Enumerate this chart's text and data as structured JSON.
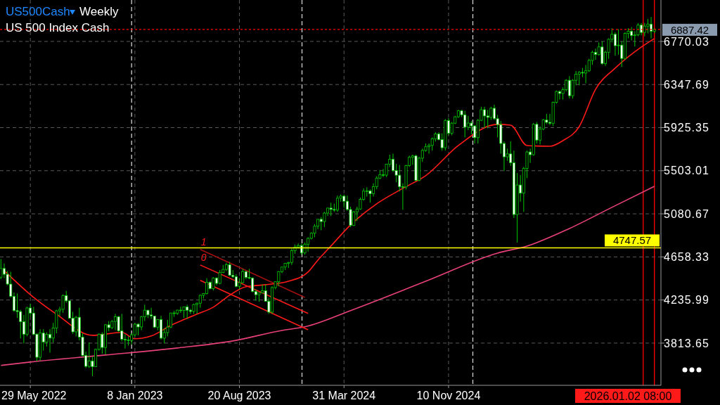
{
  "chart_data": {
    "type": "candlestick",
    "title": "US500Cash",
    "subtitle": "Weekly",
    "color": "#00c800",
    "annotations": [
      "US 500 Index Cash",
      "2026.01.02 08:00",
      "1",
      "0"
    ],
    "xlim": [
      "2022-03-25",
      "2026-02-08"
    ],
    "ylim": [
      3400,
      7176
    ],
    "xticks": [
      {
        "value": "2022-05-29",
        "label": "29 May 2022"
      },
      {
        "value": "2023-01-08",
        "label": "8 Jan 2023"
      },
      {
        "value": "2023-08-20",
        "label": "20 Aug 2023"
      },
      {
        "value": "2024-03-31",
        "label": "31 Mar 2024"
      },
      {
        "value": "2024-11-10",
        "label": "10 Nov 2024"
      }
    ],
    "yticks": [
      3813.65,
      4235.99,
      4658.33,
      5080.67,
      5503.01,
      5925.35,
      6347.69,
      6770.03
    ],
    "grid": true,
    "ref_lines": [
      {
        "axis": "y",
        "value": 4747.57,
        "label": "4747.57",
        "color": "#ffff00",
        "line_style": "solid"
      },
      {
        "axis": "y",
        "value": 6887.42,
        "label": "6887.42",
        "color": "#ff0000",
        "line_style": "dotted"
      },
      {
        "axis": "x",
        "value": "2023-01-01",
        "color": "#d0d0d0",
        "line_style": "dashed"
      },
      {
        "axis": "x",
        "value": "2024-01-01",
        "color": "#d0d0d0",
        "line_style": "dashed"
      },
      {
        "axis": "x",
        "value": "2025-01-01",
        "color": "#d0d0d0",
        "line_style": "dashed"
      },
      {
        "axis": "x",
        "value": "2026-01-01",
        "color": "#ff0000",
        "line_style": "solid"
      },
      {
        "axis": "x",
        "value": "2026-01-25",
        "color": "#ff0000",
        "line_style": "solid"
      }
    ],
    "x": [
      "2022-03-27",
      "2022-04-03",
      "2022-04-10",
      "2022-04-17",
      "2022-04-24",
      "2022-05-01",
      "2022-05-08",
      "2022-05-15",
      "2022-05-22",
      "2022-05-29",
      "2022-06-05",
      "2022-06-12",
      "2022-06-19",
      "2022-06-26",
      "2022-07-03",
      "2022-07-10",
      "2022-07-17",
      "2022-07-24",
      "2022-07-31",
      "2022-08-07",
      "2022-08-14",
      "2022-08-21",
      "2022-08-28",
      "2022-09-04",
      "2022-09-11",
      "2022-09-18",
      "2022-09-25",
      "2022-10-02",
      "2022-10-09",
      "2022-10-16",
      "2022-10-23",
      "2022-10-30",
      "2022-11-06",
      "2022-11-13",
      "2022-11-20",
      "2022-11-27",
      "2022-12-04",
      "2022-12-11",
      "2022-12-18",
      "2022-12-25",
      "2023-01-01",
      "2023-01-08",
      "2023-01-15",
      "2023-01-22",
      "2023-01-29",
      "2023-02-05",
      "2023-02-12",
      "2023-02-19",
      "2023-02-26",
      "2023-03-05",
      "2023-03-12",
      "2023-03-19",
      "2023-03-26",
      "2023-04-02",
      "2023-04-09",
      "2023-04-16",
      "2023-04-23",
      "2023-04-30",
      "2023-05-07",
      "2023-05-14",
      "2023-05-21",
      "2023-05-28",
      "2023-06-04",
      "2023-06-11",
      "2023-06-18",
      "2023-06-25",
      "2023-07-02",
      "2023-07-09",
      "2023-07-16",
      "2023-07-23",
      "2023-07-30",
      "2023-08-06",
      "2023-08-13",
      "2023-08-20",
      "2023-08-27",
      "2023-09-03",
      "2023-09-10",
      "2023-09-17",
      "2023-09-24",
      "2023-10-01",
      "2023-10-08",
      "2023-10-15",
      "2023-10-22",
      "2023-10-29",
      "2023-11-05",
      "2023-11-12",
      "2023-11-19",
      "2023-11-26",
      "2023-12-03",
      "2023-12-10",
      "2023-12-17",
      "2023-12-24",
      "2023-12-31",
      "2024-01-07",
      "2024-01-14",
      "2024-01-21",
      "2024-01-28",
      "2024-02-04",
      "2024-02-11",
      "2024-02-18",
      "2024-02-25",
      "2024-03-03",
      "2024-03-10",
      "2024-03-17",
      "2024-03-24",
      "2024-03-31",
      "2024-04-07",
      "2024-04-14",
      "2024-04-21",
      "2024-04-28",
      "2024-05-05",
      "2024-05-12",
      "2024-05-19",
      "2024-05-26",
      "2024-06-02",
      "2024-06-09",
      "2024-06-16",
      "2024-06-23",
      "2024-06-30",
      "2024-07-07",
      "2024-07-14",
      "2024-07-21",
      "2024-07-28",
      "2024-08-04",
      "2024-08-11",
      "2024-08-18",
      "2024-08-25",
      "2024-09-01",
      "2024-09-08",
      "2024-09-15",
      "2024-09-22",
      "2024-09-29",
      "2024-10-06",
      "2024-10-13",
      "2024-10-20",
      "2024-10-27",
      "2024-11-03",
      "2024-11-10",
      "2024-11-17",
      "2024-11-24",
      "2024-12-01",
      "2024-12-08",
      "2024-12-15",
      "2024-12-22",
      "2024-12-29",
      "2025-01-05",
      "2025-01-12",
      "2025-01-19",
      "2025-01-26",
      "2025-02-02",
      "2025-02-09",
      "2025-02-16",
      "2025-02-23",
      "2025-03-02",
      "2025-03-09",
      "2025-03-16",
      "2025-03-23",
      "2025-03-30",
      "2025-04-06",
      "2025-04-13",
      "2025-04-20",
      "2025-04-27",
      "2025-05-04",
      "2025-05-11",
      "2025-05-18",
      "2025-05-25",
      "2025-06-01",
      "2025-06-08",
      "2025-06-15",
      "2025-06-22",
      "2025-06-29",
      "2025-07-06",
      "2025-07-13",
      "2025-07-20",
      "2025-07-27",
      "2025-08-03",
      "2025-08-10",
      "2025-08-17",
      "2025-08-24",
      "2025-08-31",
      "2025-09-07",
      "2025-09-14",
      "2025-09-21",
      "2025-09-28",
      "2025-10-05",
      "2025-10-12",
      "2025-10-19",
      "2025-10-26",
      "2025-11-02",
      "2025-11-09",
      "2025-11-16",
      "2025-11-23",
      "2025-11-30",
      "2025-12-07",
      "2025-12-14",
      "2025-12-21",
      "2025-12-28",
      "2026-01-04",
      "2026-01-11",
      "2026-01-18",
      "2026-01-25"
    ],
    "ohlc": [
      [
        4460,
        4637,
        4440,
        4545
      ],
      [
        4545,
        4593,
        4450,
        4488
      ],
      [
        4488,
        4520,
        4380,
        4392
      ],
      [
        4392,
        4512,
        4260,
        4272
      ],
      [
        4272,
        4310,
        4120,
        4132
      ],
      [
        4132,
        4300,
        4060,
        4123
      ],
      [
        4123,
        4140,
        3860,
        4023
      ],
      [
        4023,
        4090,
        3810,
        3901
      ],
      [
        3901,
        4170,
        3880,
        4158
      ],
      [
        4158,
        4200,
        4075,
        4108
      ],
      [
        4108,
        4170,
        3890,
        3901
      ],
      [
        3901,
        3910,
        3636,
        3675
      ],
      [
        3675,
        3950,
        3640,
        3912
      ],
      [
        3912,
        3950,
        3740,
        3825
      ],
      [
        3825,
        3920,
        3780,
        3899
      ],
      [
        3899,
        3950,
        3720,
        3863
      ],
      [
        3863,
        4012,
        3820,
        3962
      ],
      [
        3962,
        4140,
        3910,
        4130
      ],
      [
        4130,
        4170,
        4080,
        4145
      ],
      [
        4145,
        4290,
        4110,
        4280
      ],
      [
        4280,
        4325,
        4210,
        4228
      ],
      [
        4228,
        4230,
        4050,
        4058
      ],
      [
        4058,
        4120,
        3905,
        3924
      ],
      [
        3924,
        4080,
        3880,
        4067
      ],
      [
        4067,
        4160,
        3840,
        3873
      ],
      [
        3873,
        3910,
        3680,
        3693
      ],
      [
        3693,
        3730,
        3570,
        3586
      ],
      [
        3586,
        3820,
        3570,
        3639
      ],
      [
        3639,
        3680,
        3490,
        3583
      ],
      [
        3583,
        3760,
        3580,
        3752
      ],
      [
        3752,
        3910,
        3740,
        3901
      ],
      [
        3901,
        3920,
        3710,
        3771
      ],
      [
        3771,
        4000,
        3700,
        3993
      ],
      [
        3993,
        4030,
        3930,
        3965
      ],
      [
        3965,
        4040,
        3950,
        4026
      ],
      [
        4026,
        4100,
        3940,
        4072
      ],
      [
        4072,
        4080,
        3920,
        3934
      ],
      [
        3934,
        4100,
        3830,
        3852
      ],
      [
        3852,
        3900,
        3760,
        3845
      ],
      [
        3845,
        3880,
        3790,
        3840
      ],
      [
        3840,
        3910,
        3800,
        3895
      ],
      [
        3895,
        4010,
        3880,
        3999
      ],
      [
        3999,
        4010,
        3890,
        3972
      ],
      [
        3972,
        4080,
        3940,
        4071
      ],
      [
        4071,
        4190,
        4030,
        4136
      ],
      [
        4136,
        4140,
        4060,
        4090
      ],
      [
        4090,
        4160,
        4050,
        4079
      ],
      [
        4079,
        4080,
        3960,
        3970
      ],
      [
        3970,
        4050,
        3940,
        4045
      ],
      [
        4045,
        4080,
        3850,
        3862
      ],
      [
        3862,
        3960,
        3810,
        3917
      ],
      [
        3917,
        4040,
        3880,
        3971
      ],
      [
        3971,
        4110,
        3960,
        4109
      ],
      [
        4109,
        4130,
        4070,
        4105
      ],
      [
        4105,
        4140,
        4090,
        4137
      ],
      [
        4137,
        4170,
        4110,
        4133
      ],
      [
        4133,
        4170,
        4060,
        4169
      ],
      [
        4169,
        4190,
        4050,
        4136
      ],
      [
        4136,
        4150,
        4100,
        4124
      ],
      [
        4124,
        4200,
        4100,
        4192
      ],
      [
        4192,
        4210,
        4100,
        4205
      ],
      [
        4205,
        4290,
        4160,
        4282
      ],
      [
        4282,
        4300,
        4250,
        4299
      ],
      [
        4299,
        4450,
        4290,
        4410
      ],
      [
        4410,
        4420,
        4340,
        4348
      ],
      [
        4348,
        4460,
        4330,
        4450
      ],
      [
        4450,
        4460,
        4380,
        4399
      ],
      [
        4399,
        4530,
        4390,
        4505
      ],
      [
        4505,
        4580,
        4500,
        4536
      ],
      [
        4536,
        4600,
        4520,
        4582
      ],
      [
        4582,
        4610,
        4470,
        4478
      ],
      [
        4478,
        4530,
        4450,
        4464
      ],
      [
        4464,
        4490,
        4360,
        4370
      ],
      [
        4370,
        4450,
        4340,
        4406
      ],
      [
        4406,
        4540,
        4400,
        4515
      ],
      [
        4515,
        4520,
        4440,
        4457
      ],
      [
        4457,
        4540,
        4440,
        4450
      ],
      [
        4450,
        4460,
        4310,
        4320
      ],
      [
        4320,
        4340,
        4230,
        4288
      ],
      [
        4288,
        4310,
        4220,
        4308
      ],
      [
        4308,
        4390,
        4300,
        4327
      ],
      [
        4327,
        4390,
        4220,
        4224
      ],
      [
        4224,
        4260,
        4100,
        4117
      ],
      [
        4117,
        4370,
        4100,
        4358
      ],
      [
        4358,
        4420,
        4340,
        4415
      ],
      [
        4415,
        4520,
        4370,
        4514
      ],
      [
        4514,
        4560,
        4500,
        4559
      ],
      [
        4559,
        4600,
        4530,
        4595
      ],
      [
        4595,
        4610,
        4550,
        4604
      ],
      [
        4604,
        4740,
        4580,
        4719
      ],
      [
        4719,
        4780,
        4690,
        4754
      ],
      [
        4754,
        4790,
        4740,
        4770
      ],
      [
        4770,
        4790,
        4680,
        4697
      ],
      [
        4697,
        4800,
        4680,
        4783
      ],
      [
        4783,
        4850,
        4710,
        4840
      ],
      [
        4840,
        4900,
        4830,
        4891
      ],
      [
        4891,
        4980,
        4850,
        4959
      ],
      [
        4959,
        5030,
        4930,
        5027
      ],
      [
        5027,
        5050,
        4920,
        5005
      ],
      [
        5005,
        5100,
        4950,
        5088
      ],
      [
        5088,
        5140,
        5060,
        5137
      ],
      [
        5137,
        5190,
        5060,
        5124
      ],
      [
        5124,
        5180,
        5100,
        5117
      ],
      [
        5117,
        5260,
        5100,
        5234
      ],
      [
        5234,
        5270,
        5200,
        5254
      ],
      [
        5254,
        5270,
        5140,
        5204
      ],
      [
        5204,
        5260,
        5110,
        5123
      ],
      [
        5123,
        5150,
        4950,
        4967
      ],
      [
        4967,
        5110,
        4960,
        5100
      ],
      [
        5100,
        5150,
        5010,
        5128
      ],
      [
        5128,
        5240,
        5120,
        5223
      ],
      [
        5223,
        5330,
        5210,
        5303
      ],
      [
        5303,
        5340,
        5250,
        5305
      ],
      [
        5305,
        5320,
        5190,
        5278
      ],
      [
        5278,
        5380,
        5250,
        5347
      ],
      [
        5347,
        5450,
        5320,
        5431
      ],
      [
        5431,
        5510,
        5420,
        5464
      ],
      [
        5464,
        5520,
        5440,
        5460
      ],
      [
        5460,
        5570,
        5440,
        5567
      ],
      [
        5567,
        5660,
        5540,
        5615
      ],
      [
        5615,
        5670,
        5490,
        5505
      ],
      [
        5505,
        5570,
        5390,
        5459
      ],
      [
        5459,
        5560,
        5300,
        5346
      ],
      [
        5346,
        5380,
        5120,
        5344
      ],
      [
        5344,
        5560,
        5320,
        5554
      ],
      [
        5554,
        5650,
        5540,
        5634
      ],
      [
        5634,
        5660,
        5560,
        5648
      ],
      [
        5648,
        5660,
        5400,
        5408
      ],
      [
        5408,
        5640,
        5400,
        5626
      ],
      [
        5626,
        5720,
        5590,
        5702
      ],
      [
        5702,
        5770,
        5690,
        5738
      ],
      [
        5738,
        5770,
        5670,
        5751
      ],
      [
        5751,
        5830,
        5700,
        5815
      ],
      [
        5815,
        5880,
        5790,
        5864
      ],
      [
        5864,
        5880,
        5800,
        5808
      ],
      [
        5808,
        5870,
        5700,
        5728
      ],
      [
        5728,
        6010,
        5700,
        5995
      ],
      [
        5995,
        6020,
        5850,
        5870
      ],
      [
        5870,
        5980,
        5850,
        5969
      ],
      [
        5969,
        6040,
        5960,
        6032
      ],
      [
        6032,
        6100,
        6020,
        6090
      ],
      [
        6090,
        6100,
        6030,
        6051
      ],
      [
        6051,
        6090,
        5830,
        5930
      ],
      [
        5930,
        6040,
        5900,
        5970
      ],
      [
        5970,
        5990,
        5860,
        5942
      ],
      [
        5942,
        5950,
        5770,
        5827
      ],
      [
        5827,
        6010,
        5770,
        5997
      ],
      [
        5997,
        6130,
        5990,
        6101
      ],
      [
        6101,
        6130,
        5920,
        6040
      ],
      [
        6040,
        6100,
        5920,
        6026
      ],
      [
        6026,
        6130,
        6000,
        6115
      ],
      [
        6115,
        6150,
        6000,
        6013
      ],
      [
        6013,
        6050,
        5830,
        5955
      ],
      [
        5955,
        5990,
        5670,
        5770
      ],
      [
        5770,
        5790,
        5500,
        5639
      ],
      [
        5639,
        5720,
        5600,
        5668
      ],
      [
        5668,
        5790,
        5550,
        5581
      ],
      [
        5581,
        5700,
        5040,
        5074
      ],
      [
        5074,
        5480,
        4800,
        5363
      ],
      [
        5363,
        5460,
        5200,
        5283
      ],
      [
        5283,
        5540,
        5100,
        5525
      ],
      [
        5525,
        5700,
        5430,
        5687
      ],
      [
        5687,
        5720,
        5580,
        5660
      ],
      [
        5660,
        5970,
        5650,
        5958
      ],
      [
        5958,
        5980,
        5770,
        5803
      ],
      [
        5803,
        5940,
        5760,
        5912
      ],
      [
        5912,
        6010,
        5900,
        6000
      ],
      [
        6000,
        6060,
        5960,
        5977
      ],
      [
        5977,
        6060,
        5950,
        5968
      ],
      [
        5968,
        6180,
        5940,
        6173
      ],
      [
        6173,
        6290,
        6160,
        6279
      ],
      [
        6279,
        6290,
        6200,
        6260
      ],
      [
        6260,
        6320,
        6200,
        6297
      ],
      [
        6297,
        6400,
        6280,
        6389
      ],
      [
        6389,
        6430,
        6210,
        6238
      ],
      [
        6238,
        6400,
        6210,
        6389
      ],
      [
        6389,
        6480,
        6340,
        6449
      ],
      [
        6449,
        6480,
        6340,
        6467
      ],
      [
        6467,
        6510,
        6420,
        6460
      ],
      [
        6460,
        6540,
        6360,
        6482
      ],
      [
        6482,
        6600,
        6470,
        6584
      ],
      [
        6584,
        6680,
        6540,
        6664
      ],
      [
        6664,
        6700,
        6590,
        6643
      ],
      [
        6643,
        6760,
        6630,
        6716
      ],
      [
        6716,
        6770,
        6540,
        6553
      ],
      [
        6553,
        6680,
        6530,
        6664
      ],
      [
        6664,
        6800,
        6600,
        6791
      ],
      [
        6791,
        6900,
        6760,
        6840
      ],
      [
        6840,
        6860,
        6630,
        6728
      ],
      [
        6728,
        6890,
        6640,
        6734
      ],
      [
        6734,
        6770,
        6520,
        6603
      ],
      [
        6603,
        6860,
        6590,
        6849
      ],
      [
        6849,
        6900,
        6800,
        6870
      ],
      [
        6870,
        6910,
        6780,
        6827
      ],
      [
        6827,
        6870,
        6720,
        6834
      ],
      [
        6834,
        6950,
        6820,
        6930
      ],
      [
        6930,
        6950,
        6830,
        6858
      ],
      [
        6858,
        6950,
        6820,
        6920
      ],
      [
        6920,
        6990,
        6850,
        6940
      ],
      [
        6940,
        7010,
        6800,
        6870
      ],
      [
        6870,
        6900,
        6850,
        6887.42
      ]
    ],
    "series": [
      {
        "type": "line",
        "color": "#ff1a1a",
        "x": [
          "2022-04-03",
          "2022-06-05",
          "2022-07-24",
          "2022-10-09",
          "2022-12-11",
          "2023-01-08",
          "2023-02-12",
          "2023-03-26",
          "2023-05-21",
          "2023-06-25",
          "2023-07-30",
          "2023-09-03",
          "2023-10-15",
          "2023-12-03",
          "2024-01-14",
          "2024-02-04",
          "2024-03-03",
          "2024-04-14",
          "2024-06-09",
          "2024-08-04",
          "2024-09-22",
          "2024-12-01",
          "2025-02-23",
          "2025-03-23",
          "2025-04-27",
          "2025-06-15",
          "2025-07-13",
          "2025-08-17",
          "2025-09-21",
          "2025-11-02",
          "2025-12-28",
          "2026-01-25"
        ],
        "values": [
          4524,
          4262,
          4097,
          3890,
          3918,
          3856,
          3884,
          3987,
          4097,
          4166,
          4283,
          4366,
          4386,
          4420,
          4510,
          4627,
          4765,
          4972,
          5179,
          5330,
          5454,
          5750,
          5957,
          5950,
          5750,
          5743,
          5798,
          5936,
          6302,
          6508,
          6715,
          6798
        ]
      },
      {
        "type": "line",
        "color": "#e8407a",
        "x": [
          "2022-03-27",
          "2022-05-29",
          "2022-11-06",
          "2023-04-09",
          "2023-08-06",
          "2023-11-19",
          "2024-01-07",
          "2024-04-21",
          "2024-09-22",
          "2025-02-23",
          "2025-04-27",
          "2025-07-27",
          "2025-10-26",
          "2026-01-25"
        ],
        "values": [
          3595,
          3628,
          3697,
          3766,
          3835,
          3938,
          3973,
          4145,
          4420,
          4696,
          4765,
          4937,
          5144,
          5350
        ]
      },
      {
        "type": "line",
        "color": "#a01010",
        "x": [
          "2023-05-28",
          "2024-01-07"
        ],
        "values": [
          4731,
          4262
        ]
      },
      {
        "type": "line",
        "color": "#ff1a1a",
        "x": [
          "2023-05-28",
          "2024-01-14"
        ],
        "values": [
          4579,
          4104
        ]
      },
      {
        "type": "line",
        "color": "#ff1a1a",
        "x": [
          "2023-05-28",
          "2024-01-14"
        ],
        "values": [
          4428,
          3945
        ]
      }
    ]
  }
}
